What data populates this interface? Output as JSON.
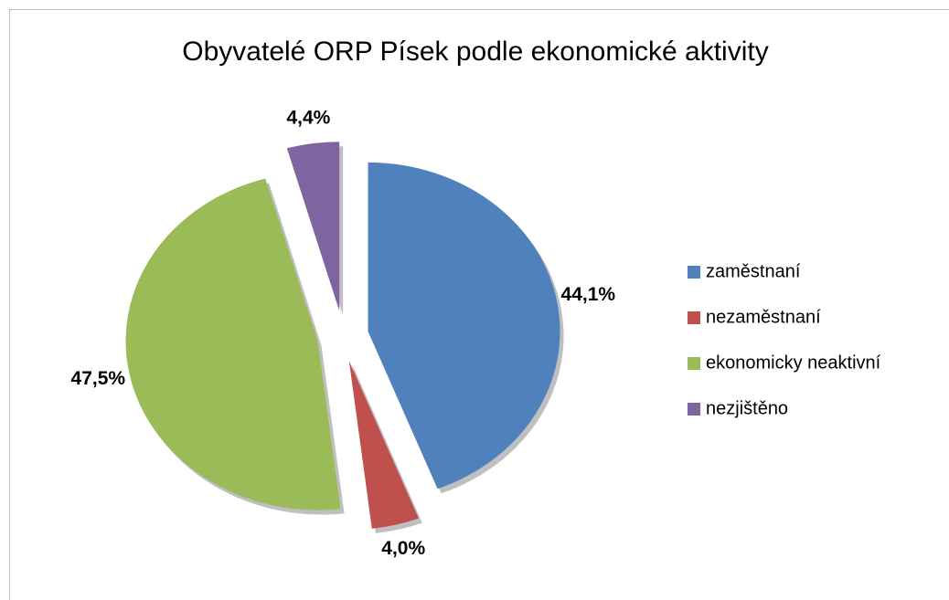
{
  "chart_data": {
    "type": "pie",
    "title": "Obyvatelé ORP Písek podle ekonomické aktivity",
    "categories": [
      "zaměstnaní",
      "nezaměstnaní",
      "ekonomicky neaktivní",
      "nezjištěno"
    ],
    "values": [
      44.1,
      4.0,
      47.5,
      4.4
    ],
    "value_labels": [
      "44,1%",
      "4,0%",
      "47,5%",
      "4,4%"
    ],
    "colors": [
      "#4f81bd",
      "#c0504d",
      "#9bbb59",
      "#8064a2"
    ],
    "legend": "right"
  }
}
